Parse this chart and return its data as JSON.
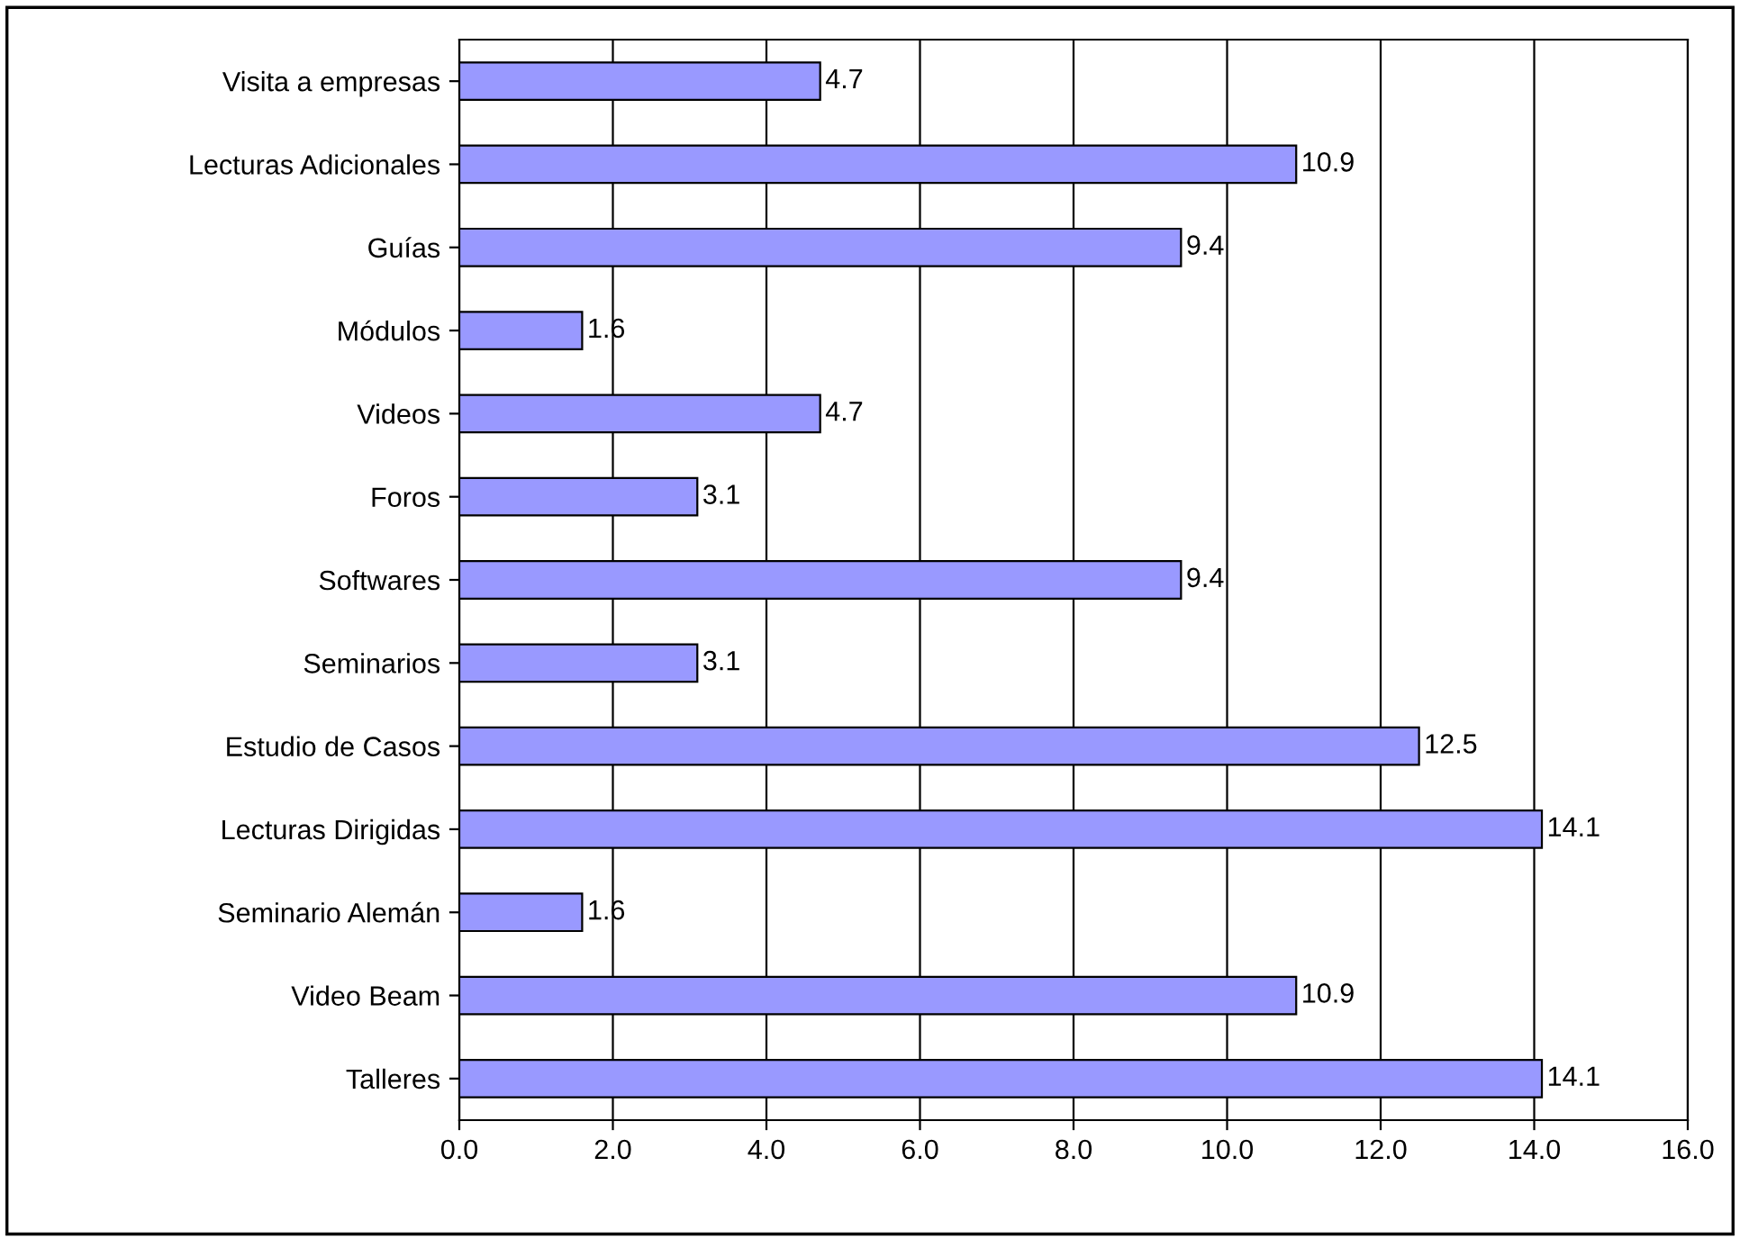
{
  "chart_data": {
    "type": "bar",
    "orientation": "horizontal",
    "categories": [
      "Visita a empresas",
      "Lecturas Adicionales",
      "Guías",
      "Módulos",
      "Videos",
      "Foros",
      "Softwares",
      "Seminarios",
      "Estudio de Casos",
      "Lecturas Dirigidas",
      "Seminario Alemán",
      "Video Beam",
      "Talleres"
    ],
    "values": [
      4.7,
      10.9,
      9.4,
      1.6,
      4.7,
      3.1,
      9.4,
      3.1,
      12.5,
      14.1,
      1.6,
      10.9,
      14.1
    ],
    "color": "#9999ff",
    "xlim": [
      0,
      16
    ],
    "xticks": [
      {
        "value": 0,
        "label": "0.0"
      },
      {
        "value": 2,
        "label": "2.0"
      },
      {
        "value": 4,
        "label": "4.0"
      },
      {
        "value": 6,
        "label": "6.0"
      },
      {
        "value": 8,
        "label": "8.0"
      },
      {
        "value": 10,
        "label": "10.0"
      },
      {
        "value": 12,
        "label": "12.0"
      },
      {
        "value": 14,
        "label": "14.0"
      },
      {
        "value": 16,
        "label": "16.0"
      }
    ],
    "grid": "x",
    "data_labels": true
  }
}
